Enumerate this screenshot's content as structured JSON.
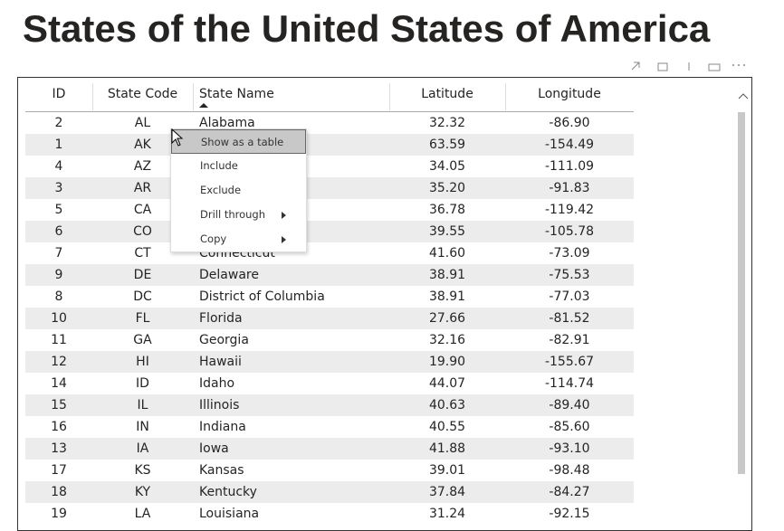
{
  "header": {
    "title": "States of the United States of America"
  },
  "table": {
    "columns": [
      "ID",
      "State Code",
      "State Name",
      "Latitude",
      "Longitude"
    ],
    "rows": [
      [
        "2",
        "AL",
        "Alabama",
        "32.32",
        "-86.90"
      ],
      [
        "1",
        "AK",
        null,
        "63.59",
        "-154.49"
      ],
      [
        "4",
        "AZ",
        null,
        "34.05",
        "-111.09"
      ],
      [
        "3",
        "AR",
        null,
        "35.20",
        "-91.83"
      ],
      [
        "5",
        "CA",
        null,
        "36.78",
        "-119.42"
      ],
      [
        "6",
        "CO",
        null,
        "39.55",
        "-105.78"
      ],
      [
        "7",
        "CT",
        "Connecticut",
        "41.60",
        "-73.09"
      ],
      [
        "9",
        "DE",
        "Delaware",
        "38.91",
        "-75.53"
      ],
      [
        "8",
        "DC",
        "District of Columbia",
        "38.91",
        "-77.03"
      ],
      [
        "10",
        "FL",
        "Florida",
        "27.66",
        "-81.52"
      ],
      [
        "11",
        "GA",
        "Georgia",
        "32.16",
        "-82.91"
      ],
      [
        "12",
        "HI",
        "Hawaii",
        "19.90",
        "-155.67"
      ],
      [
        "14",
        "ID",
        "Idaho",
        "44.07",
        "-114.74"
      ],
      [
        "15",
        "IL",
        "Illinois",
        "40.63",
        "-89.40"
      ],
      [
        "16",
        "IN",
        "Indiana",
        "40.55",
        "-85.60"
      ],
      [
        "13",
        "IA",
        "Iowa",
        "41.88",
        "-93.10"
      ],
      [
        "17",
        "KS",
        "Kansas",
        "39.01",
        "-98.48"
      ],
      [
        "18",
        "KY",
        "Kentucky",
        "37.84",
        "-84.27"
      ],
      [
        "19",
        "LA",
        "Louisiana",
        "31.24",
        "-92.15"
      ]
    ]
  },
  "context_menu": {
    "items": [
      "Show as a table",
      "Include",
      "Exclude",
      "Drill through",
      "Copy"
    ]
  }
}
